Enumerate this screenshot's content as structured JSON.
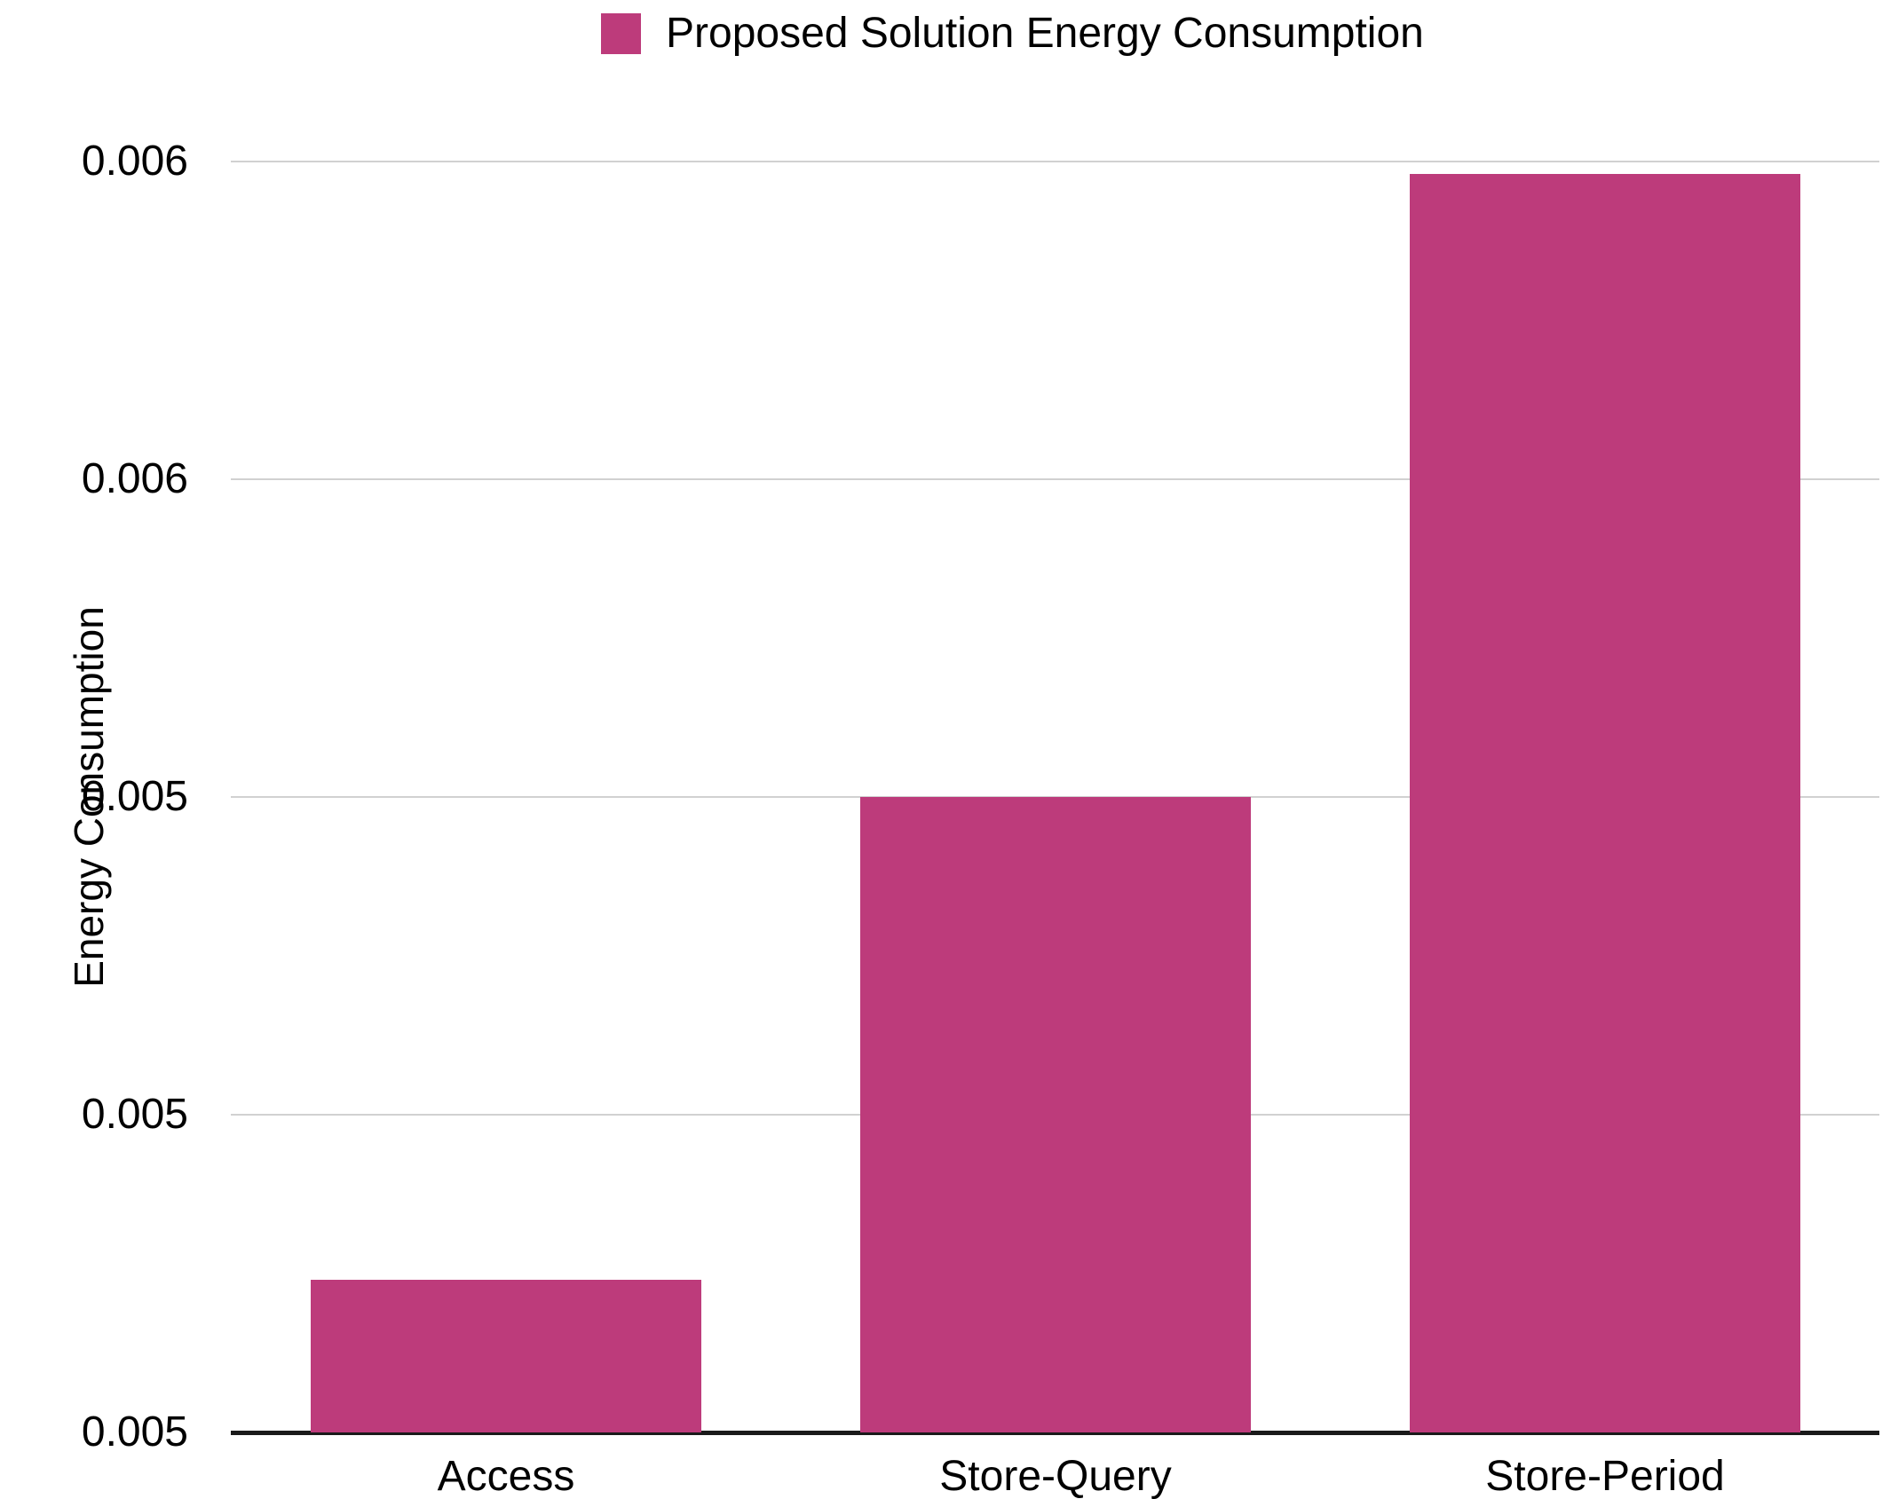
{
  "legend": {
    "label": "Proposed Solution Energy Consumption",
    "swatch_color": "#bd3b7b"
  },
  "y_axis": {
    "title": "Energy Consumption",
    "tick_labels_top_to_bottom": [
      "0.006",
      "0.006",
      "0.005",
      "0.005",
      "0.005"
    ]
  },
  "chart_data": {
    "type": "bar",
    "title": "",
    "xlabel": "",
    "ylabel": "Energy Consumption",
    "categories": [
      "Access",
      "Store-Query",
      "Store-Period"
    ],
    "series": [
      {
        "name": "Proposed Solution Energy Consumption",
        "values": [
          0.00512,
          0.0055,
          0.00599
        ],
        "color": "#bd3b7b"
      }
    ],
    "ylim": [
      0.005,
      0.006
    ],
    "y_tick_display_labels_bottom_to_top": [
      "0.005",
      "0.005",
      "0.005",
      "0.006",
      "0.006"
    ],
    "grid": true,
    "legend_position": "top-center",
    "colors": {
      "bar": "#bd3b7b",
      "gridline": "#d1d1d1",
      "axis_line": "#1a1a1a",
      "text": "#000000",
      "background": "#ffffff"
    }
  }
}
